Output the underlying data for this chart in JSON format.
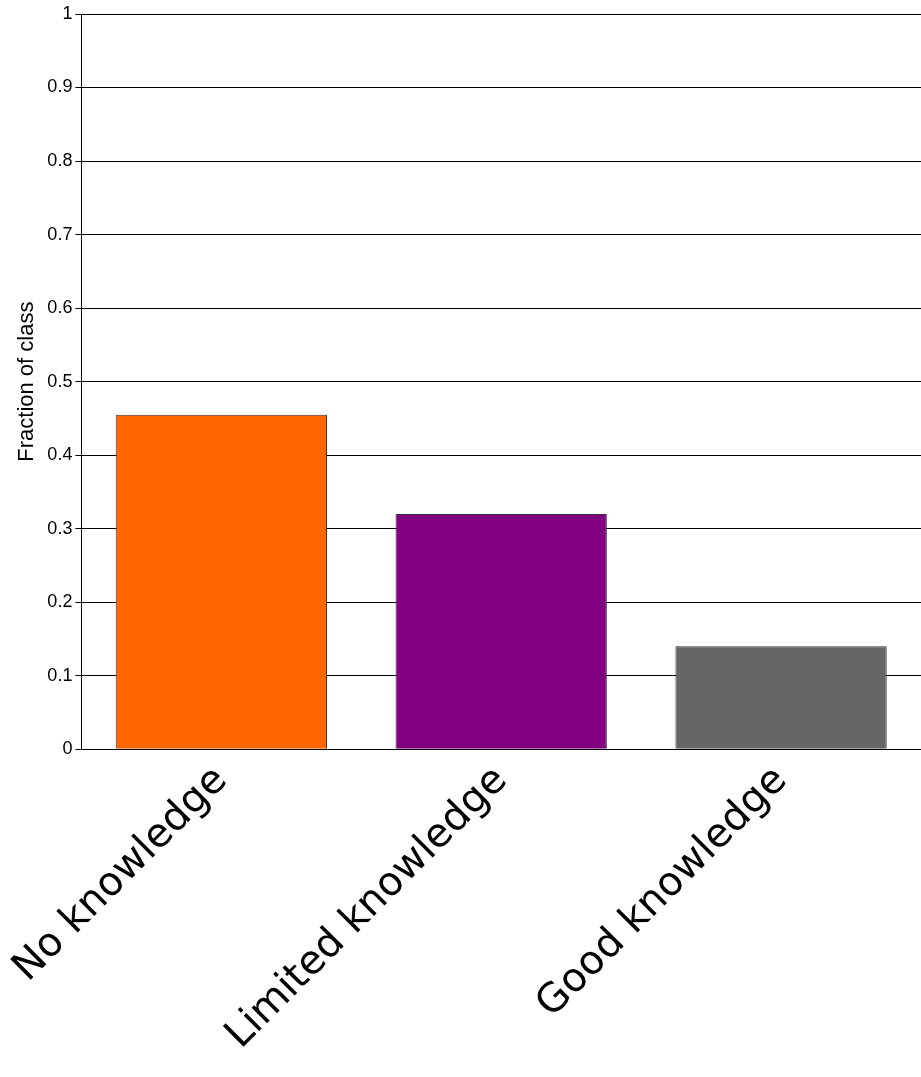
{
  "chart_data": {
    "type": "bar",
    "ylabel": "Fraction of class",
    "categories": [
      "No knowledge",
      "Limited knowledge",
      "Good knowledge"
    ],
    "values": [
      0.455,
      0.32,
      0.14
    ],
    "colors": [
      "#ff6600",
      "#800080",
      "#666666"
    ],
    "ylim": [
      0,
      1
    ],
    "yticks": [
      0,
      0.1,
      0.2,
      0.3,
      0.4,
      0.5,
      0.6,
      0.7,
      0.8,
      0.9,
      1
    ],
    "grid": "y"
  }
}
